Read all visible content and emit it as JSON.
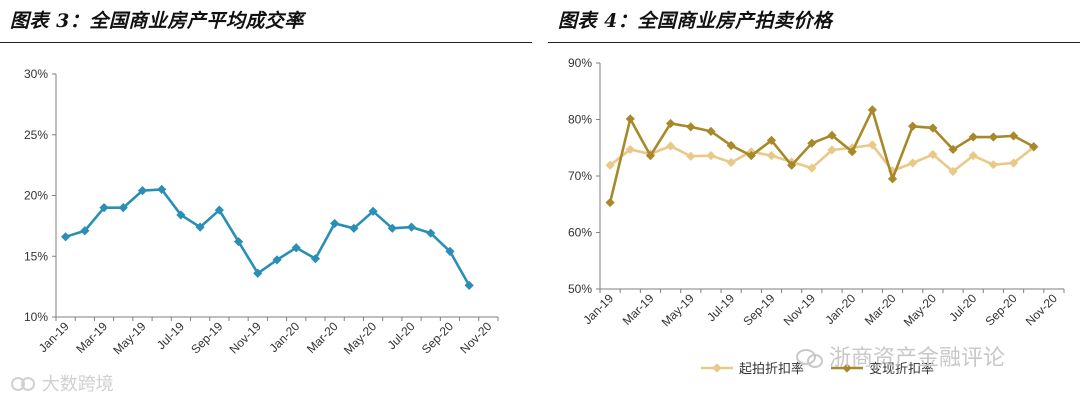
{
  "left": {
    "title": "图表 3：全国商业房产平均成交率",
    "watermark": "大数跨境"
  },
  "right": {
    "title": "图表 4：全国商业房产拍卖价格",
    "watermark": "浙商资产金融评论"
  },
  "chart_data": [
    {
      "type": "line",
      "x_tick_labels": [
        "Jan-19",
        "Mar-19",
        "May-19",
        "Jul-19",
        "Sep-19",
        "Nov-19",
        "Jan-20",
        "Mar-20",
        "May-20",
        "Jul-20",
        "Sep-20",
        "Nov-20"
      ],
      "x": [
        "Jan-19",
        "Feb-19",
        "Mar-19",
        "Apr-19",
        "May-19",
        "Jun-19",
        "Jul-19",
        "Aug-19",
        "Sep-19",
        "Oct-19",
        "Nov-19",
        "Dec-19",
        "Jan-20",
        "Feb-20",
        "Mar-20",
        "Apr-20",
        "May-20",
        "Jun-20",
        "Jul-20",
        "Aug-20",
        "Sep-20",
        "Oct-20"
      ],
      "series": [
        {
          "color": "#2a8fb5",
          "marker": "diamond",
          "values": [
            16.6,
            17.1,
            19.0,
            19.0,
            20.4,
            20.5,
            18.4,
            17.4,
            18.8,
            16.2,
            13.6,
            14.7,
            15.7,
            14.8,
            17.7,
            17.3,
            18.7,
            17.3,
            17.4,
            16.9,
            15.4,
            12.6
          ]
        }
      ],
      "ylim": [
        10,
        30
      ],
      "y_ticks": [
        "10%",
        "15%",
        "20%",
        "25%",
        "30%"
      ],
      "grid": false,
      "legend": "none"
    },
    {
      "type": "line",
      "x_tick_labels": [
        "Jan-19",
        "Mar-19",
        "May-19",
        "Jul-19",
        "Sep-19",
        "Nov-19",
        "Jan-20",
        "Mar-20",
        "May-20",
        "Jul-20",
        "Sep-20",
        "Nov-20"
      ],
      "x": [
        "Jan-19",
        "Feb-19",
        "Mar-19",
        "Apr-19",
        "May-19",
        "Jun-19",
        "Jul-19",
        "Aug-19",
        "Sep-19",
        "Oct-19",
        "Nov-19",
        "Dec-19",
        "Jan-20",
        "Feb-20",
        "Mar-20",
        "Apr-20",
        "May-20",
        "Jun-20",
        "Jul-20",
        "Aug-20",
        "Sep-20",
        "Oct-20"
      ],
      "series": [
        {
          "name": "起拍折扣率",
          "color": "#e8c987",
          "marker": "diamond",
          "values": [
            71.9,
            74.7,
            73.9,
            75.3,
            73.5,
            73.6,
            72.4,
            74.3,
            73.6,
            72.5,
            71.4,
            74.6,
            75.0,
            75.5,
            70.9,
            72.3,
            73.8,
            70.8,
            73.6,
            72.0,
            72.3,
            75.1
          ]
        },
        {
          "name": "变现折扣率",
          "color": "#a8892a",
          "marker": "diamond",
          "values": [
            65.3,
            80.1,
            73.6,
            79.3,
            78.7,
            77.9,
            75.4,
            73.6,
            76.3,
            71.9,
            75.8,
            77.2,
            74.3,
            81.7,
            69.5,
            78.8,
            78.5,
            74.7,
            76.9,
            76.9,
            77.1,
            75.2
          ]
        }
      ],
      "ylim": [
        50,
        90
      ],
      "y_ticks": [
        "50%",
        "60%",
        "70%",
        "80%",
        "90%"
      ],
      "grid": false,
      "legend": "bottom"
    }
  ]
}
